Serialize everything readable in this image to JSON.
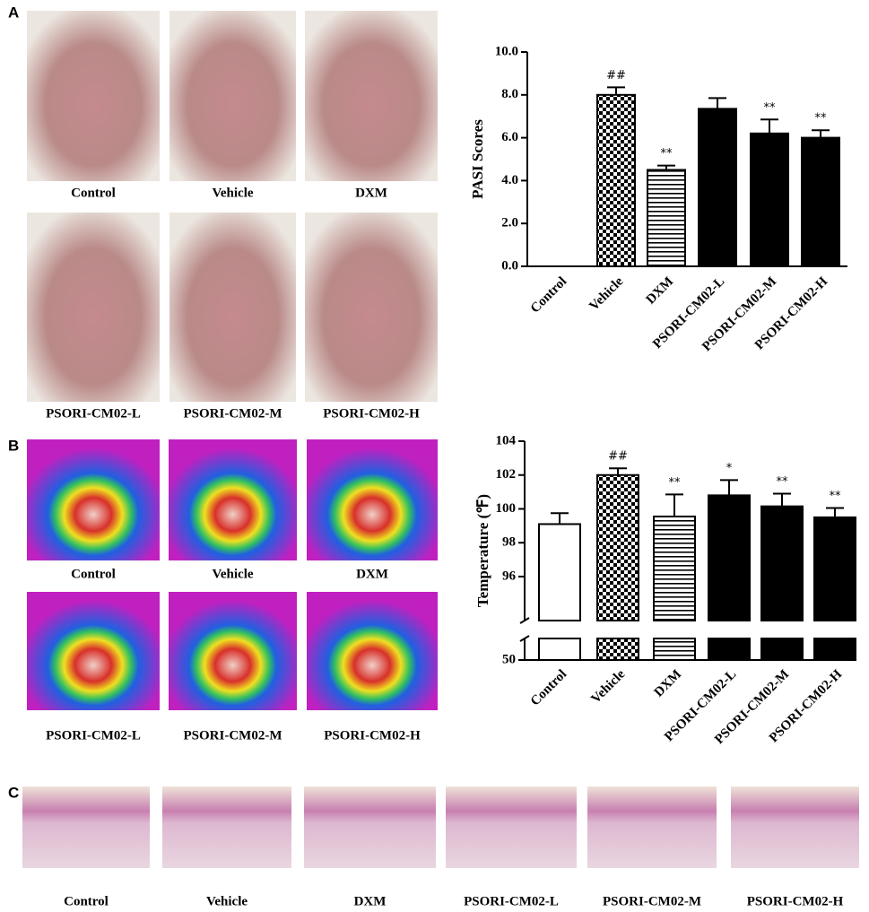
{
  "panels": [
    {
      "label": "A",
      "captions": [
        "Control",
        "Vehicle",
        "DXM",
        "PSORI-CM02-L",
        "PSORI-CM02-M",
        "PSORI-CM02-H"
      ]
    },
    {
      "label": "B",
      "captions": [
        "Control",
        "Vehicle",
        "DXM",
        "PSORI-CM02-L",
        "PSORI-CM02-M",
        "PSORI-CM02-H"
      ]
    },
    {
      "label": "C",
      "captions": [
        "Control",
        "Vehicle",
        "DXM",
        "PSORI-CM02-L",
        "PSORI-CM02-M",
        "PSORI-CM02-H"
      ]
    }
  ],
  "chart_data": [
    {
      "type": "bar",
      "ylabel": "PASI Scores",
      "categories": [
        "Control",
        "Vehicle",
        "DXM",
        "PSORI-CM02-L",
        "PSORI-CM02-M",
        "PSORI-CM02-H"
      ],
      "values": [
        0,
        8.0,
        4.5,
        7.35,
        6.2,
        6.0
      ],
      "errors": [
        0,
        0.35,
        0.2,
        0.5,
        0.65,
        0.35
      ],
      "annotations": [
        null,
        "##",
        "**",
        null,
        "**",
        "**"
      ],
      "fills": [
        "white",
        "checker",
        "hlines",
        "black",
        "black",
        "black"
      ],
      "ylim": [
        0,
        10
      ],
      "yticks": [
        {
          "value": 0,
          "label": "0.0"
        },
        {
          "value": 2,
          "label": "2.0"
        },
        {
          "value": 4,
          "label": "4.0"
        },
        {
          "value": 6,
          "label": "6.0"
        },
        {
          "value": 8,
          "label": "8.0"
        },
        {
          "value": 10,
          "label": "10.0"
        }
      ]
    },
    {
      "type": "bar",
      "ylabel": "Temperature (℉)",
      "categories": [
        "Control",
        "Vehicle",
        "DXM",
        "PSORI-CM02-L",
        "PSORI-CM02-M",
        "PSORI-CM02-H"
      ],
      "values": [
        99.1,
        102.0,
        99.55,
        100.8,
        100.15,
        99.5
      ],
      "errors": [
        0.65,
        0.4,
        1.3,
        0.9,
        0.75,
        0.55
      ],
      "annotations": [
        null,
        "##",
        "**",
        "*",
        "**",
        "**"
      ],
      "fills": [
        "white",
        "checker",
        "hlines",
        "black",
        "black",
        "black"
      ],
      "ylim": [
        93.4,
        104
      ],
      "yticks": [
        96,
        98,
        100,
        102,
        104
      ],
      "ylim_lower": [
        50,
        51
      ],
      "yticks_lower": [
        50
      ]
    }
  ]
}
